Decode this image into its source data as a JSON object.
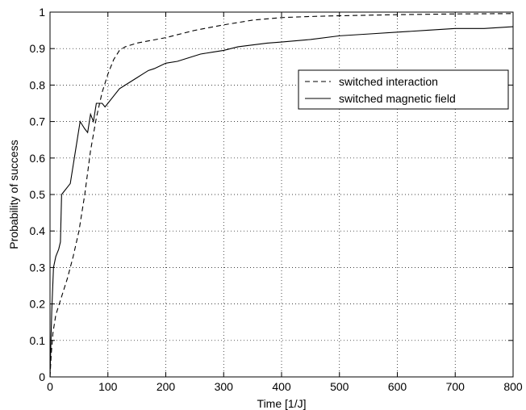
{
  "chart_data": {
    "type": "line",
    "title": "",
    "xlabel": "Time [1/J]",
    "ylabel": "Probability of success",
    "xlim": [
      0,
      800
    ],
    "ylim": [
      0,
      1
    ],
    "x_ticks": [
      0,
      100,
      200,
      300,
      400,
      500,
      600,
      700,
      800
    ],
    "y_ticks": [
      0,
      0.1,
      0.2,
      0.3,
      0.4,
      0.5,
      0.6,
      0.7,
      0.8,
      0.9,
      1
    ],
    "x_tick_labels": [
      "0",
      "100",
      "200",
      "300",
      "400",
      "500",
      "600",
      "700",
      "800"
    ],
    "y_tick_labels": [
      "0",
      "0.1",
      "0.2",
      "0.3",
      "0.4",
      "0.5",
      "0.6",
      "0.7",
      "0.8",
      "0.9",
      "1"
    ],
    "grid": true,
    "legend_position": "upper-right",
    "series": [
      {
        "name": "switched interaction",
        "style": "dashed",
        "color": "#000000",
        "points": [
          [
            0,
            0.0
          ],
          [
            2,
            0.06
          ],
          [
            5,
            0.12
          ],
          [
            10,
            0.17
          ],
          [
            20,
            0.22
          ],
          [
            30,
            0.27
          ],
          [
            40,
            0.33
          ],
          [
            50,
            0.4
          ],
          [
            55,
            0.45
          ],
          [
            60,
            0.5
          ],
          [
            65,
            0.56
          ],
          [
            70,
            0.62
          ],
          [
            80,
            0.71
          ],
          [
            90,
            0.78
          ],
          [
            100,
            0.83
          ],
          [
            110,
            0.87
          ],
          [
            120,
            0.895
          ],
          [
            130,
            0.905
          ],
          [
            150,
            0.915
          ],
          [
            200,
            0.93
          ],
          [
            250,
            0.95
          ],
          [
            300,
            0.965
          ],
          [
            350,
            0.978
          ],
          [
            400,
            0.985
          ],
          [
            450,
            0.988
          ],
          [
            500,
            0.99
          ],
          [
            600,
            0.993
          ],
          [
            700,
            0.995
          ],
          [
            800,
            0.996
          ]
        ]
      },
      {
        "name": "switched magnetic field",
        "style": "solid",
        "color": "#000000",
        "points": [
          [
            0,
            0.0
          ],
          [
            3,
            0.18
          ],
          [
            6,
            0.3
          ],
          [
            10,
            0.33
          ],
          [
            15,
            0.35
          ],
          [
            18,
            0.37
          ],
          [
            20,
            0.5
          ],
          [
            25,
            0.51
          ],
          [
            30,
            0.52
          ],
          [
            35,
            0.53
          ],
          [
            40,
            0.58
          ],
          [
            45,
            0.63
          ],
          [
            48,
            0.66
          ],
          [
            52,
            0.7
          ],
          [
            56,
            0.69
          ],
          [
            60,
            0.68
          ],
          [
            65,
            0.67
          ],
          [
            70,
            0.72
          ],
          [
            75,
            0.7
          ],
          [
            80,
            0.75
          ],
          [
            85,
            0.75
          ],
          [
            90,
            0.75
          ],
          [
            95,
            0.74
          ],
          [
            100,
            0.75
          ],
          [
            110,
            0.77
          ],
          [
            120,
            0.79
          ],
          [
            130,
            0.8
          ],
          [
            140,
            0.81
          ],
          [
            150,
            0.82
          ],
          [
            160,
            0.83
          ],
          [
            170,
            0.84
          ],
          [
            180,
            0.845
          ],
          [
            200,
            0.86
          ],
          [
            220,
            0.865
          ],
          [
            240,
            0.875
          ],
          [
            260,
            0.885
          ],
          [
            280,
            0.89
          ],
          [
            300,
            0.895
          ],
          [
            325,
            0.905
          ],
          [
            350,
            0.91
          ],
          [
            375,
            0.915
          ],
          [
            400,
            0.918
          ],
          [
            450,
            0.925
          ],
          [
            500,
            0.935
          ],
          [
            550,
            0.94
          ],
          [
            600,
            0.945
          ],
          [
            650,
            0.95
          ],
          [
            700,
            0.955
          ],
          [
            750,
            0.955
          ],
          [
            800,
            0.96
          ]
        ]
      }
    ]
  }
}
